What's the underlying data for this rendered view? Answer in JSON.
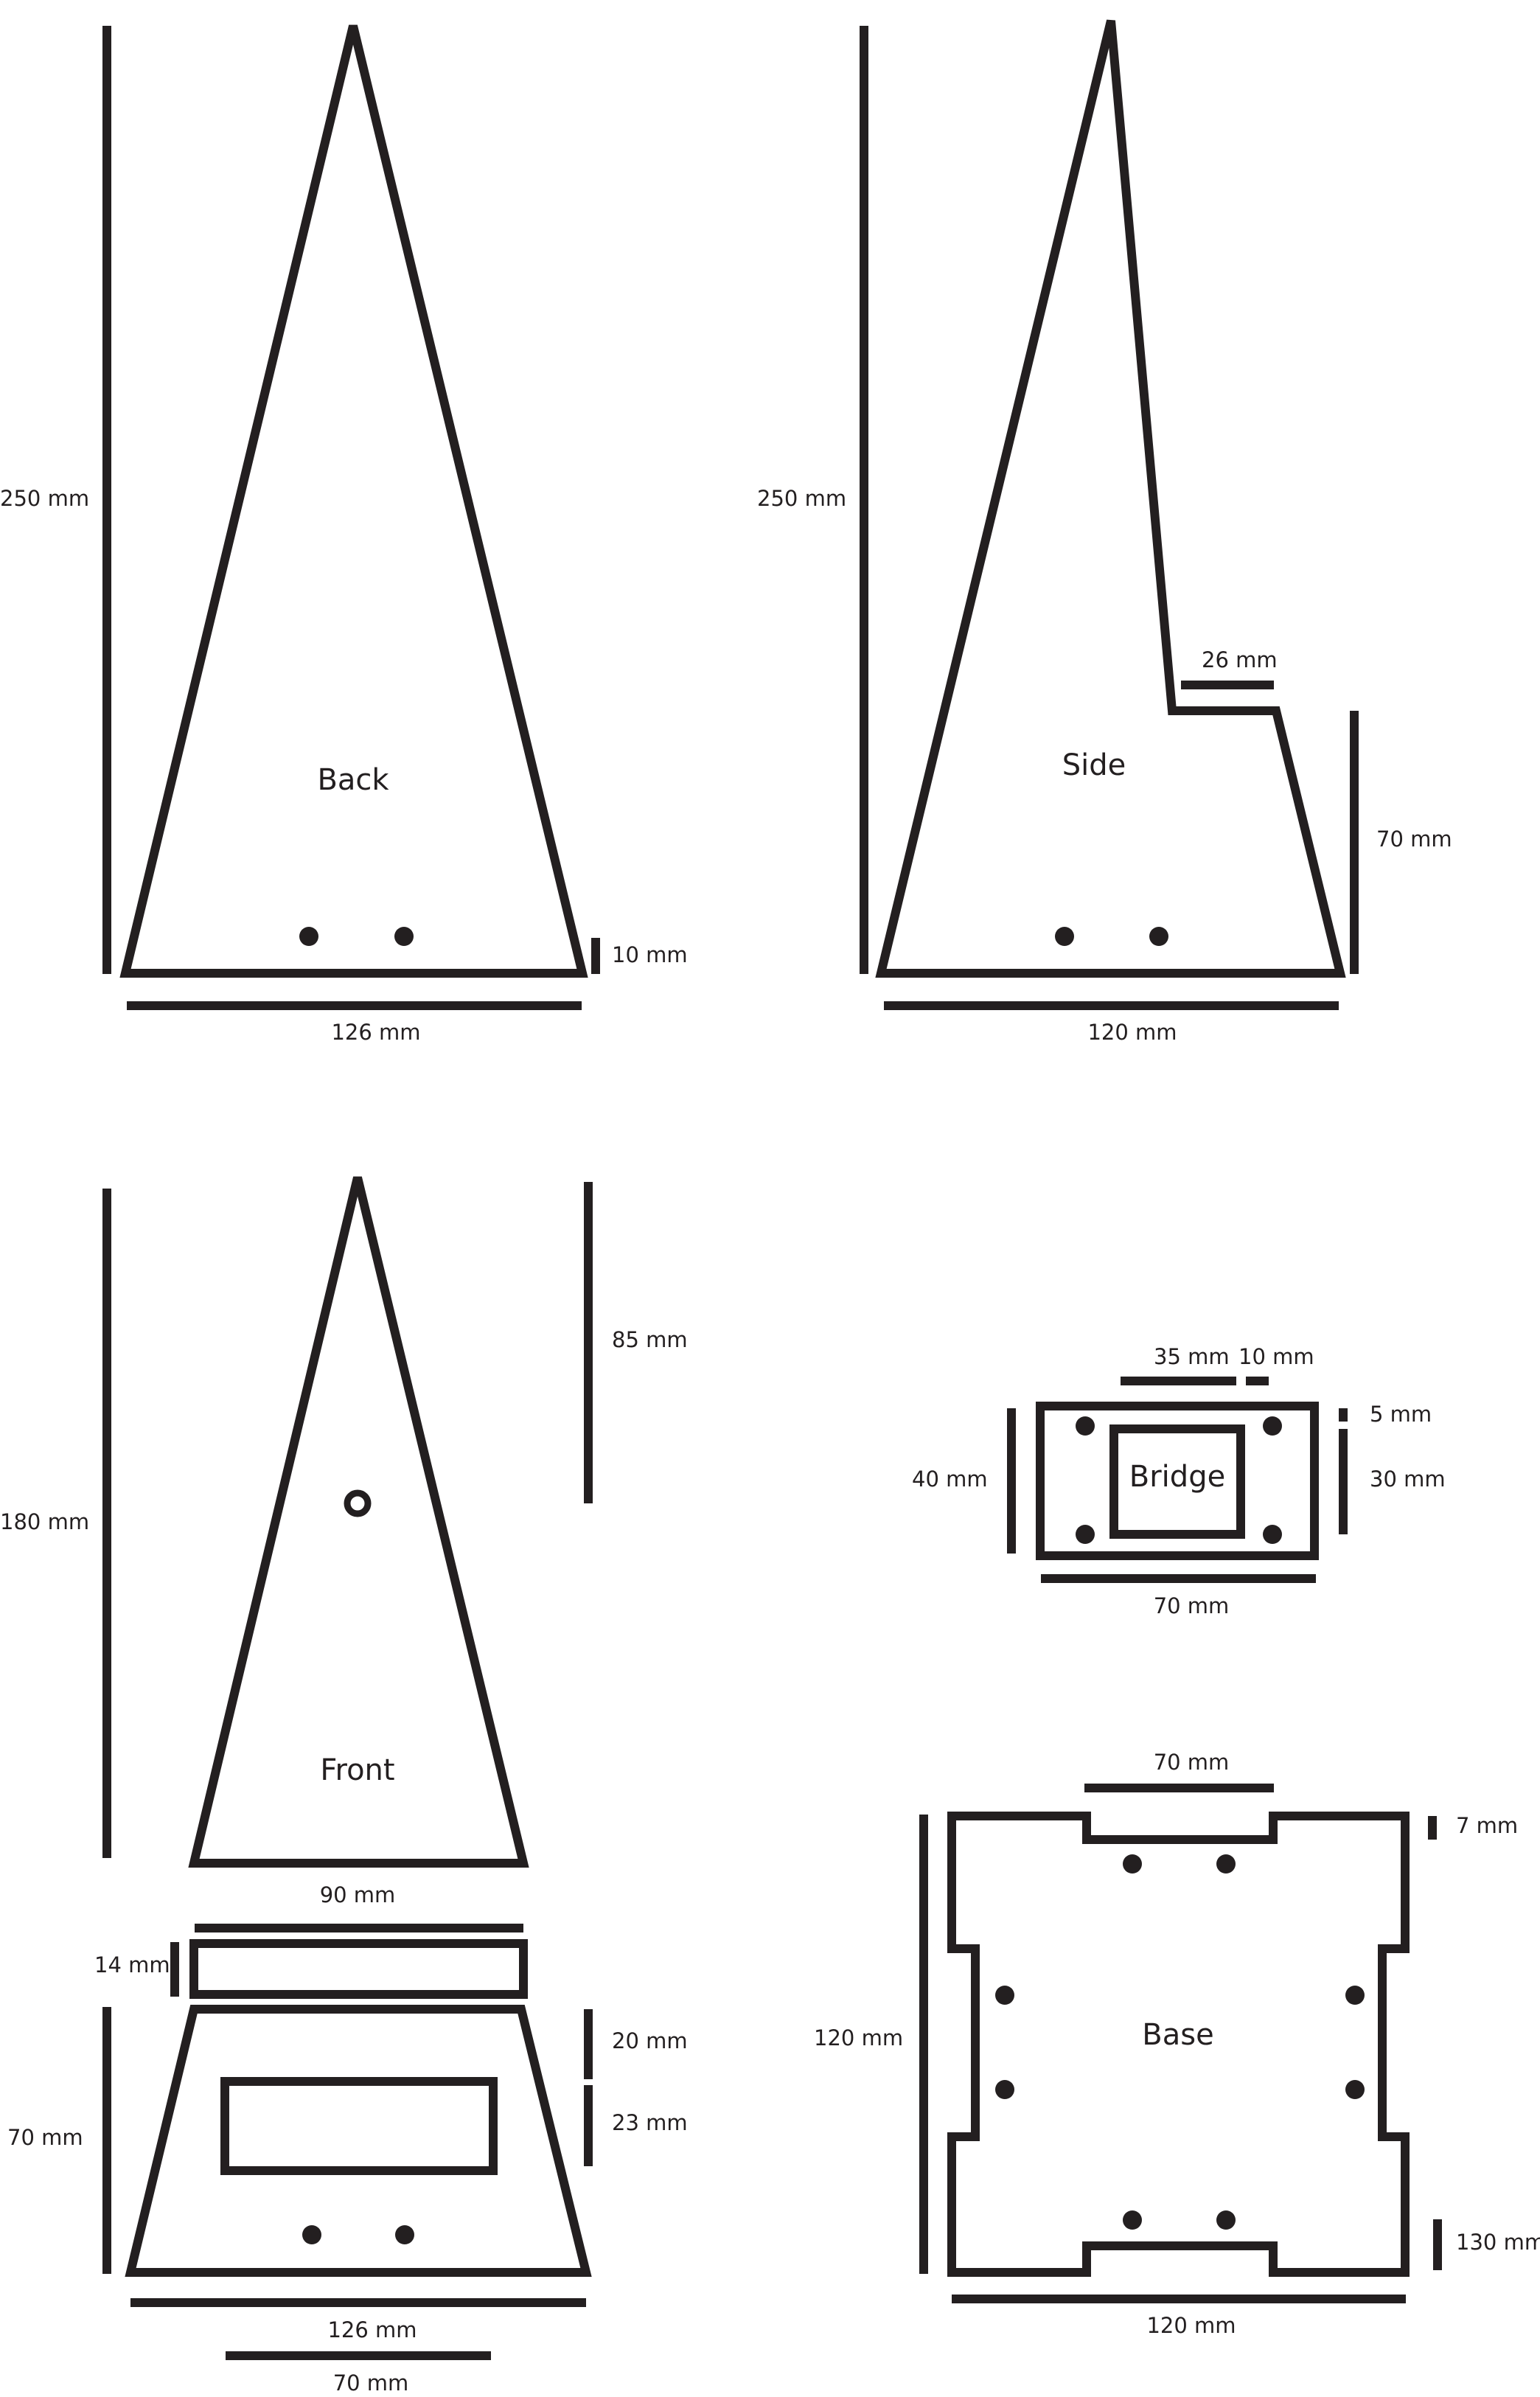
{
  "colors": {
    "ink": "#231f20",
    "background": "#ffffff"
  },
  "pieces": {
    "back": {
      "title": "Back",
      "height": "250 mm",
      "hole_offset": "10 mm",
      "width": "126 mm"
    },
    "side": {
      "title": "Side",
      "height": "250 mm",
      "notch": "26 mm",
      "lower_height": "70 mm",
      "width": "120 mm"
    },
    "front": {
      "title": "Front",
      "height": "180 mm",
      "upper_height": "85 mm",
      "width": "90 mm",
      "strip_height": "14 mm",
      "lower_height": "70 mm",
      "window_top": "20 mm",
      "window_height": "23 mm",
      "base_width": "126 mm",
      "tab_width": "70 mm"
    },
    "bridge": {
      "title": "Bridge",
      "inner_width": "35 mm",
      "gap": "10 mm",
      "margin": "5 mm",
      "height": "40 mm",
      "inner_height": "30 mm",
      "width": "70 mm"
    },
    "base": {
      "title": "Base",
      "tab_width": "70 mm",
      "tab_depth": "7 mm",
      "height": "120 mm",
      "side_dim": "130 mm",
      "width": "120 mm"
    }
  }
}
